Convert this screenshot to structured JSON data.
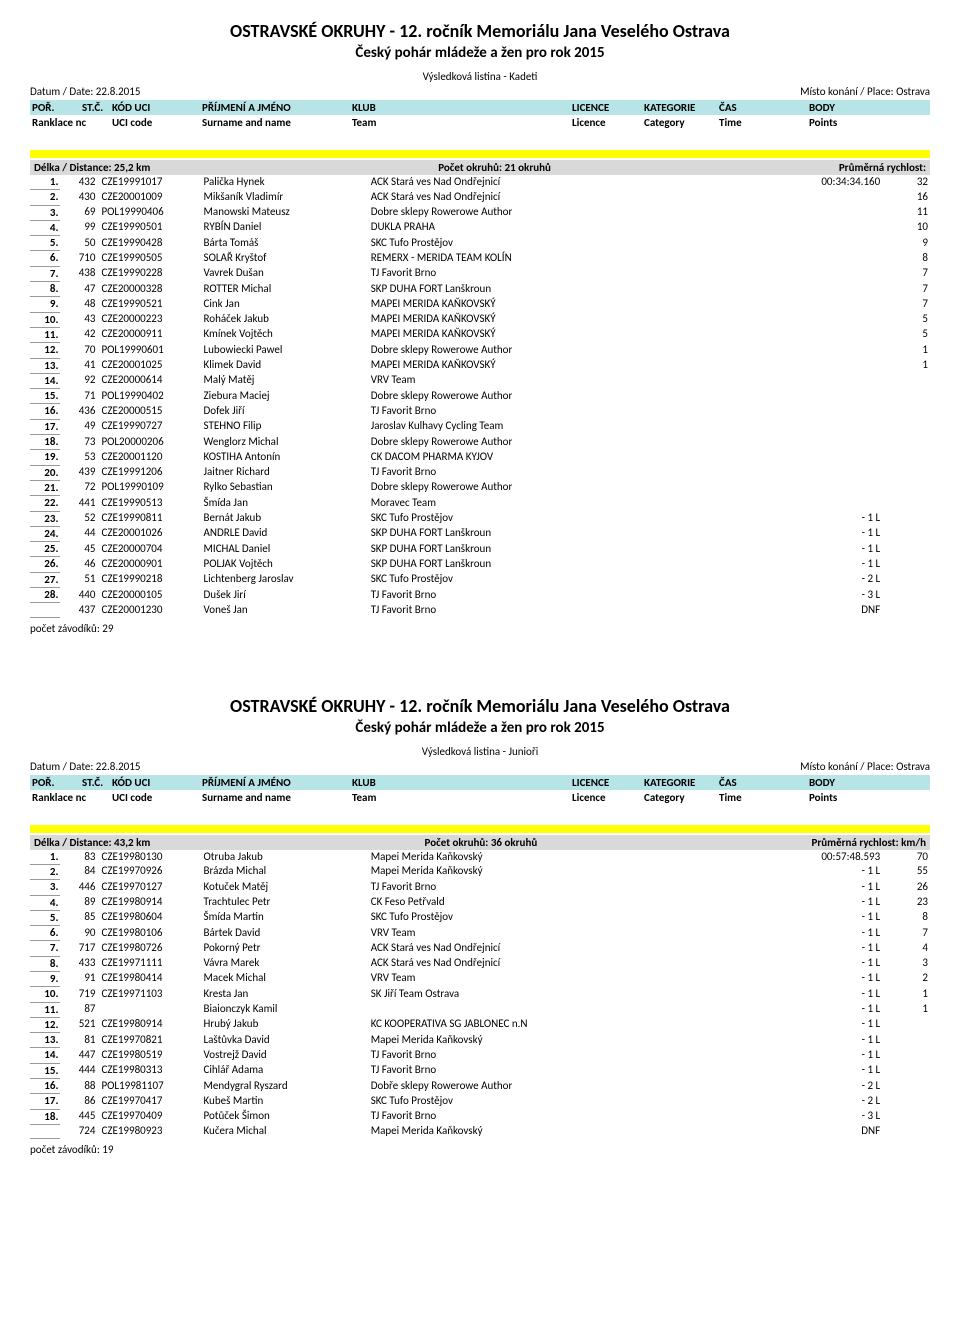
{
  "event1": {
    "title": "OSTRAVSKÉ OKRUHY - 12. ročník Memoriálu Jana Veselého Ostrava",
    "subtitle": "Český pohár mládeže a žen pro rok 2015",
    "listing": "Výsledková listina - Kadeti",
    "date_label": "Datum / Date: 22.8.2015",
    "place_label": "Místo konání / Place: Ostrava",
    "hdr": {
      "por": "POŘ.",
      "stc": "ST.Č.",
      "kod": "KÓD UCI",
      "prijmeni": "PŘÍJMENÍ A JMÉNO",
      "klub": "KLUB",
      "lic": "LICENCE",
      "kat": "KATEGORIE",
      "cas": "ČAS",
      "body": "BODY"
    },
    "hdr2": {
      "por": "Ranklace nc",
      "kod": "UCI code",
      "prijmeni": "Surname and name",
      "klub": "Team",
      "lic": "Licence",
      "kat": "Category",
      "cas": "Time",
      "body": "Points"
    },
    "distance": "Délka / Distance: 25,2 km",
    "laps": "Počet okruhů: 21 okruhů",
    "speed": "Průměrná rychlost:",
    "footer": "počet závodíků: 29",
    "rows": [
      {
        "rank": "1.",
        "bib": "432",
        "uci": "CZE19991017",
        "name": "Palička Hynek",
        "team": "ACK Stará ves Nad Ondřejnicí",
        "time": "00:34:34.160",
        "pts": "32"
      },
      {
        "rank": "2.",
        "bib": "430",
        "uci": "CZE20001009",
        "name": "Mikšaník Vladimír",
        "team": "ACK Stará ves Nad Ondřejnicí",
        "time": "",
        "pts": "16"
      },
      {
        "rank": "3.",
        "bib": "69",
        "uci": "POL19990406",
        "name": "Manowski Mateusz",
        "team": "Dobre sklepy Rowerowe Author",
        "time": "",
        "pts": "11"
      },
      {
        "rank": "4.",
        "bib": "99",
        "uci": "CZE19990501",
        "name": "RYBÍN Daniel",
        "team": "DUKLA  PRAHA",
        "time": "",
        "pts": "10"
      },
      {
        "rank": "5.",
        "bib": "50",
        "uci": "CZE19990428",
        "name": "Bárta Tomáš",
        "team": "SKC Tufo Prostějov",
        "time": "",
        "pts": "9"
      },
      {
        "rank": "6.",
        "bib": "710",
        "uci": "CZE19990505",
        "name": "SOLAŘ Kryštof",
        "team": "REMERX - MERIDA TEAM  KOLÍN",
        "time": "",
        "pts": "8"
      },
      {
        "rank": "7.",
        "bib": "438",
        "uci": "CZE19990228",
        "name": "Vavrek Dušan",
        "team": "TJ Favorit Brno",
        "time": "",
        "pts": "7"
      },
      {
        "rank": "8.",
        "bib": "47",
        "uci": "CZE20000328",
        "name": "ROTTER Michal",
        "team": "SKP DUHA FORT Lanškroun",
        "time": "",
        "pts": "7"
      },
      {
        "rank": "9.",
        "bib": "48",
        "uci": "CZE19990521",
        "name": "Cink Jan",
        "team": "MAPEI MERIDA KAŇKOVSKÝ",
        "time": "",
        "pts": "7"
      },
      {
        "rank": "10.",
        "bib": "43",
        "uci": "CZE20000223",
        "name": "Roháček Jakub",
        "team": "MAPEI MERIDA KAŇKOVSKÝ",
        "time": "",
        "pts": "5"
      },
      {
        "rank": "11.",
        "bib": "42",
        "uci": "CZE20000911",
        "name": "Kmínek Vojtěch",
        "team": "MAPEI MERIDA KAŇKOVSKÝ",
        "time": "",
        "pts": "5"
      },
      {
        "rank": "12.",
        "bib": "70",
        "uci": "POL19990601",
        "name": "Lubowiecki Pawel",
        "team": "Dobre sklepy Rowerowe Author",
        "time": "",
        "pts": "1"
      },
      {
        "rank": "13.",
        "bib": "41",
        "uci": "CZE20001025",
        "name": "Klimek David",
        "team": "MAPEI MERIDA KAŇKOVSKÝ",
        "time": "",
        "pts": "1"
      },
      {
        "rank": "14.",
        "bib": "92",
        "uci": "CZE20000614",
        "name": "Malý Matěj",
        "team": "VRV Team",
        "time": "",
        "pts": ""
      },
      {
        "rank": "15.",
        "bib": "71",
        "uci": "POL19990402",
        "name": "Ziebura Maciej",
        "team": "Dobre sklepy Rowerowe Author",
        "time": "",
        "pts": ""
      },
      {
        "rank": "16.",
        "bib": "436",
        "uci": "CZE20000515",
        "name": "Dofek Jiří",
        "team": "TJ Favorit Brno",
        "time": "",
        "pts": ""
      },
      {
        "rank": "17.",
        "bib": "49",
        "uci": "CZE19990727",
        "name": "STEHNO Filip",
        "team": "Jaroslav Kulhavy Cycling Team",
        "time": "",
        "pts": ""
      },
      {
        "rank": "18.",
        "bib": "73",
        "uci": "POL20000206",
        "name": "Wenglorz Michal",
        "team": "Dobre sklepy Rowerowe Author",
        "time": "",
        "pts": ""
      },
      {
        "rank": "19.",
        "bib": "53",
        "uci": "CZE20001120",
        "name": "KOSTIHA Antonín",
        "team": "CK DACOM PHARMA KYJOV",
        "time": "",
        "pts": ""
      },
      {
        "rank": "20.",
        "bib": "439",
        "uci": "CZE19991206",
        "name": "Jaitner Richard",
        "team": "TJ Favorit Brno",
        "time": "",
        "pts": ""
      },
      {
        "rank": "21.",
        "bib": "72",
        "uci": "POL19990109",
        "name": "Rylko Sebastian",
        "team": "Dobre sklepy Rowerowe Author",
        "time": "",
        "pts": ""
      },
      {
        "rank": "22.",
        "bib": "441",
        "uci": "CZE19990513",
        "name": "Šmída Jan",
        "team": "Moravec Team",
        "time": "",
        "pts": ""
      },
      {
        "rank": "23.",
        "bib": "52",
        "uci": "CZE19990811",
        "name": "Bernát Jakub",
        "team": "SKC Tufo Prostějov",
        "time": "- 1 L",
        "pts": ""
      },
      {
        "rank": "24.",
        "bib": "44",
        "uci": "CZE20001026",
        "name": "ANDRLE David",
        "team": "SKP DUHA FORT Lanškroun",
        "time": "- 1 L",
        "pts": ""
      },
      {
        "rank": "25.",
        "bib": "45",
        "uci": "CZE20000704",
        "name": "MICHAL Daniel",
        "team": "SKP DUHA FORT Lanškroun",
        "time": "- 1 L",
        "pts": ""
      },
      {
        "rank": "26.",
        "bib": "46",
        "uci": "CZE20000901",
        "name": "POLJAK Vojtěch",
        "team": "SKP DUHA FORT Lanškroun",
        "time": "- 1 L",
        "pts": ""
      },
      {
        "rank": "27.",
        "bib": "51",
        "uci": "CZE19990218",
        "name": "Lichtenberg Jaroslav",
        "team": "SKC Tufo Prostějov",
        "time": "- 2 L",
        "pts": ""
      },
      {
        "rank": "28.",
        "bib": "440",
        "uci": "CZE20000105",
        "name": "Dušek Jirí",
        "team": "TJ Favorit Brno",
        "time": "- 3 L",
        "pts": ""
      },
      {
        "rank": "",
        "bib": "437",
        "uci": "CZE20001230",
        "name": "Voneš Jan",
        "team": "TJ Favorit Brno",
        "time": "DNF",
        "pts": ""
      }
    ]
  },
  "event2": {
    "title": "OSTRAVSKÉ OKRUHY - 12. ročník Memoriálu Jana Veselého Ostrava",
    "subtitle": "Český pohár mládeže a žen pro rok 2015",
    "listing": "Výsledková listina - Junioři",
    "date_label": "Datum / Date: 22.8.2015",
    "place_label": "Místo konání / Place: Ostrava",
    "distance": "Délka / Distance: 43,2 km",
    "laps": "Počet okruhů: 36 okruhů",
    "speed": "Průměrná rychlost: km/h",
    "footer": "počet závodíků: 19",
    "rows": [
      {
        "rank": "1.",
        "bib": "83",
        "uci": "CZE19980130",
        "name": "Otruba Jakub",
        "team": "Mapei Merida Kaňkovský",
        "time": "00:57:48.593",
        "pts": "70"
      },
      {
        "rank": "2.",
        "bib": "84",
        "uci": "CZE19970926",
        "name": "Brázda Michal",
        "team": "Mapei Merida Kaňkovský",
        "time": "- 1 L",
        "pts": "55"
      },
      {
        "rank": "3.",
        "bib": "446",
        "uci": "CZE19970127",
        "name": "Kotuček Matěj",
        "team": "TJ Favorit Brno",
        "time": "- 1 L",
        "pts": "26"
      },
      {
        "rank": "4.",
        "bib": "89",
        "uci": "CZE19980914",
        "name": "Trachtulec Petr",
        "team": "CK Feso Petřvald",
        "time": "- 1 L",
        "pts": "23"
      },
      {
        "rank": "5.",
        "bib": "85",
        "uci": "CZE19980604",
        "name": "Šmída Martin",
        "team": "SKC Tufo Prostějov",
        "time": "- 1 L",
        "pts": "8"
      },
      {
        "rank": "6.",
        "bib": "90",
        "uci": "CZE19980106",
        "name": "Bártek David",
        "team": "VRV Team",
        "time": "- 1 L",
        "pts": "7"
      },
      {
        "rank": "7.",
        "bib": "717",
        "uci": "CZE19980726",
        "name": "Pokorný Petr",
        "team": "ACK Stará ves Nad Ondřejnicí",
        "time": "- 1 L",
        "pts": "4"
      },
      {
        "rank": "8.",
        "bib": "433",
        "uci": "CZE19971111",
        "name": "Vávra Marek",
        "team": "ACK Stará ves Nad Ondřejnicí",
        "time": "- 1 L",
        "pts": "3"
      },
      {
        "rank": "9.",
        "bib": "91",
        "uci": "CZE19980414",
        "name": "Macek Michal",
        "team": "VRV Team",
        "time": "- 1 L",
        "pts": "2"
      },
      {
        "rank": "10.",
        "bib": "719",
        "uci": "CZE19971103",
        "name": "Kresta Jan",
        "team": "SK Jiří Team Ostrava",
        "time": "- 1 L",
        "pts": "1"
      },
      {
        "rank": "11.",
        "bib": "87",
        "uci": "",
        "name": "Biaionczyk Kamil",
        "team": "",
        "time": "- 1 L",
        "pts": "1"
      },
      {
        "rank": "12.",
        "bib": "521",
        "uci": "CZE19980914",
        "name": "Hrubý Jakub",
        "team": "KC KOOPERATIVA SG JABLONEC n.N",
        "time": "- 1 L",
        "pts": ""
      },
      {
        "rank": "13.",
        "bib": "81",
        "uci": "CZE19970821",
        "name": "Laštůvka David",
        "team": "Mapei Merida Kaňkovský",
        "time": "- 1 L",
        "pts": ""
      },
      {
        "rank": "14.",
        "bib": "447",
        "uci": "CZE19980519",
        "name": "Vostrejž David",
        "team": "TJ Favorit Brno",
        "time": "- 1 L",
        "pts": ""
      },
      {
        "rank": "15.",
        "bib": "444",
        "uci": "CZE19980313",
        "name": "Cihlář Adama",
        "team": "TJ Favorit Brno",
        "time": "- 1 L",
        "pts": ""
      },
      {
        "rank": "16.",
        "bib": "88",
        "uci": "POL19981107",
        "name": "Mendygral Ryszard",
        "team": "Dobře sklepy Rowerowe Author",
        "time": "- 2 L",
        "pts": ""
      },
      {
        "rank": "17.",
        "bib": "86",
        "uci": "CZE19970417",
        "name": "Kubeš Martin",
        "team": "SKC Tufo Prostějov",
        "time": "- 2 L",
        "pts": ""
      },
      {
        "rank": "18.",
        "bib": "445",
        "uci": "CZE19970409",
        "name": "Potůček Šimon",
        "team": "TJ Favorit Brno",
        "time": "- 3 L",
        "pts": ""
      },
      {
        "rank": "",
        "bib": "724",
        "uci": "CZE19980923",
        "name": "Kučera Michal",
        "team": "Mapei Merida Kaňkovský",
        "time": "DNF",
        "pts": ""
      }
    ]
  },
  "colors": {
    "header_bg": "#b7e4e7",
    "yellow": "#ffff00",
    "dist_bg": "#d9d9d9",
    "rank_border": "#999999"
  }
}
